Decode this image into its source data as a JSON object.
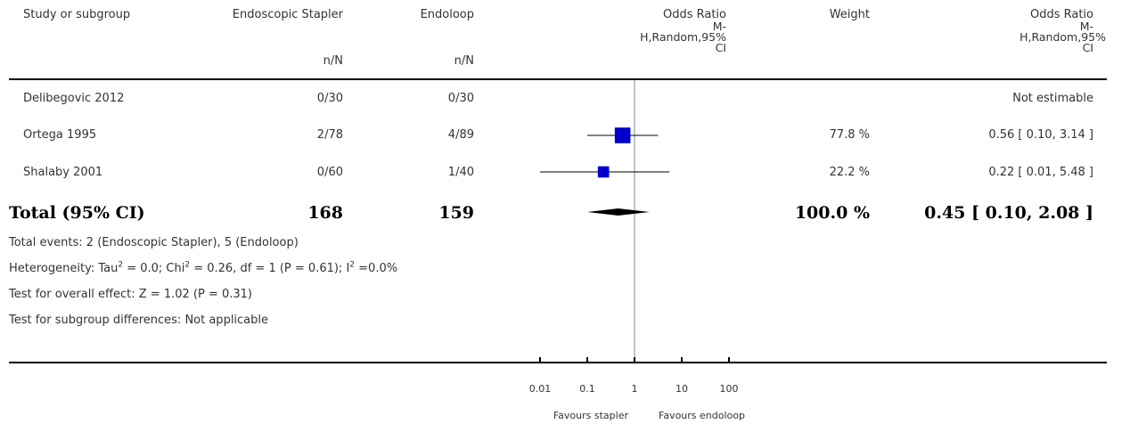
{
  "header": {
    "study": "Study or subgroup",
    "group1": "Endoscopic Stapler",
    "group2": "Endoloop",
    "or_line1": "Odds Ratio",
    "or_line2": "M-",
    "or_line3": "H,Random,95%",
    "or_line4": "CI",
    "weight": "Weight",
    "nN": "n/N"
  },
  "studies": [
    {
      "name": "Delibegovic 2012",
      "g1": "0/30",
      "g2": "0/30",
      "weight": "",
      "ci_text": "Not estimable"
    },
    {
      "name": "Ortega 1995",
      "g1": "2/78",
      "g2": "4/89",
      "weight": "77.8 %",
      "ci_text": "0.56 [ 0.10, 3.14 ]"
    },
    {
      "name": "Shalaby 2001",
      "g1": "0/60",
      "g2": "1/40",
      "weight": "22.2 %",
      "ci_text": "0.22 [ 0.01, 5.48 ]"
    }
  ],
  "total": {
    "label": "Total (95% CI)",
    "g1": "168",
    "g2": "159",
    "weight": "100.0 %",
    "ci_text": "0.45 [ 0.10, 2.08 ]"
  },
  "footer": {
    "events": "Total events: 2 (Endoscopic Stapler), 5 (Endoloop)",
    "het_a": "Heterogeneity: Tau",
    "het_b": " = 0.0; Chi",
    "het_c": " = 0.26, df = 1 (P = 0.61); I",
    "het_d": " =0.0%",
    "sup2": "2",
    "overall": "Test for overall effect: Z = 1.02 (P = 0.31)",
    "subgroup": "Test for subgroup differences: Not applicable"
  },
  "chart_data": {
    "type": "scatter",
    "scale": "log",
    "xlim": [
      0.01,
      100
    ],
    "ticks": [
      {
        "value": 0.01,
        "label": "0.01"
      },
      {
        "value": 0.1,
        "label": "0.1"
      },
      {
        "value": 1,
        "label": "1"
      },
      {
        "value": 10,
        "label": "10"
      },
      {
        "value": 100,
        "label": "100"
      }
    ],
    "favours_left": "Favours stapler",
    "favours_right": "Favours endoloop",
    "marker_color": "#0000cc",
    "points": [
      {
        "study": "Ortega 1995",
        "or": 0.56,
        "lo": 0.1,
        "hi": 3.14,
        "weight": 77.8
      },
      {
        "study": "Shalaby 2001",
        "or": 0.22,
        "lo": 0.01,
        "hi": 5.48,
        "weight": 22.2
      }
    ],
    "pooled": {
      "or": 0.45,
      "lo": 0.1,
      "hi": 2.08
    }
  }
}
